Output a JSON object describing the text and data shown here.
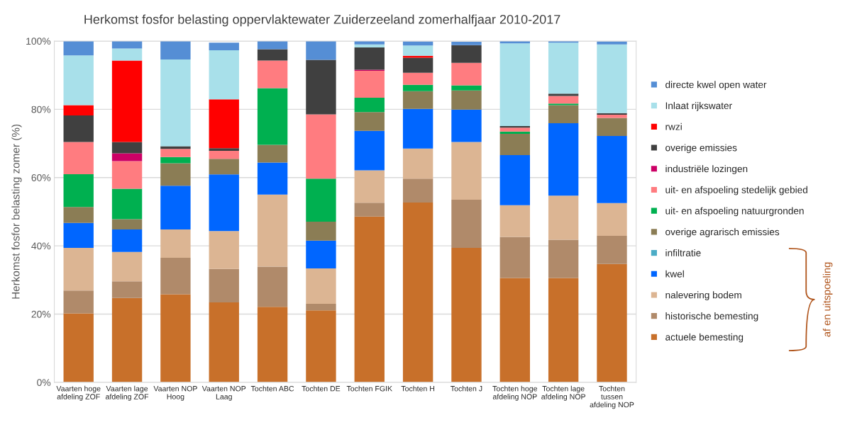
{
  "chart_data": {
    "type": "bar",
    "stacked": true,
    "title": "Herkomst fosfor belasting oppervlaktewater Zuiderzeeland zomerhalfjaar 2010-2017",
    "ylabel": "Herkomst fosfor belasting zomer (%)",
    "categories": [
      "Vaarten hoge\nafdeling ZOF",
      "Vaarten lage\nafdeling ZOF",
      "Vaarten NOP\nHoog",
      "Vaarten NOP\nLaag",
      "Tochten ABC",
      "Tochten DE",
      "Tochten FGIK",
      "Tochten H",
      "Tochten J",
      "Tochten hoge\nafdeling NOP",
      "Tochten lage\nafdeling NOP",
      "Tochten\ntussen\nafdeling NOP"
    ],
    "series": [
      {
        "name": "actuele bemesting",
        "color": "#c8702a",
        "values": [
          20.2,
          24.7,
          25.8,
          23.4,
          22.1,
          21.1,
          48.6,
          52.7,
          39.4,
          30.6,
          30.6,
          34.7
        ]
      },
      {
        "name": "historische bemesting",
        "color": "#b08a6a",
        "values": [
          6.7,
          4.9,
          10.7,
          9.8,
          11.8,
          1.9,
          4.0,
          7.0,
          14.1,
          12.0,
          11.2,
          8.2
        ]
      },
      {
        "name": "nalevering bodem",
        "color": "#dcb593",
        "values": [
          12.5,
          8.6,
          8.3,
          11.1,
          21.1,
          10.4,
          9.5,
          8.8,
          16.9,
          9.3,
          12.9,
          9.6
        ]
      },
      {
        "name": "kwel",
        "color": "#0066ff",
        "values": [
          7.3,
          6.6,
          12.8,
          16.6,
          9.4,
          8.1,
          11.6,
          11.6,
          9.5,
          14.7,
          21.2,
          19.7
        ]
      },
      {
        "name": "infiltratie",
        "color": "#4bacc6",
        "values": [
          0,
          0,
          0,
          0,
          0,
          0,
          0,
          0,
          0,
          0,
          0,
          0
        ]
      },
      {
        "name": "overige agrarisch emissies",
        "color": "#8b7d55",
        "values": [
          4.7,
          3.0,
          6.6,
          4.6,
          5.2,
          5.6,
          5.5,
          5.2,
          5.6,
          6.2,
          5.3,
          5.3
        ]
      },
      {
        "name": "uit- en afspoeling natuurgronden",
        "color": "#00b050",
        "values": [
          9.6,
          8.9,
          1.8,
          null,
          16.6,
          12.6,
          4.2,
          1.9,
          1.5,
          0.7,
          0.5,
          null
        ]
      },
      {
        "name": "uit- en afspoeling stedelijk gebied",
        "color": "#ff7c80",
        "values": [
          9.4,
          8.1,
          2.4,
          2.3,
          8.1,
          18.8,
          7.9,
          3.5,
          6.6,
          1.1,
          2.2,
          0.9
        ]
      },
      {
        "name": "industriële lozingen",
        "color": "#cc0066",
        "values": [
          0,
          2.3,
          0,
          0,
          0,
          0,
          0.3,
          null,
          null,
          0,
          0,
          0
        ]
      },
      {
        "name": "overige emissies",
        "color": "#404040",
        "values": [
          7.8,
          3.3,
          0.8,
          0.8,
          3.3,
          16.0,
          6.5,
          4.4,
          5.2,
          0.5,
          0.7,
          0.5
        ]
      },
      {
        "name": "rwzi",
        "color": "#ff0000",
        "values": [
          3.0,
          23.9,
          0,
          14.3,
          0,
          0,
          0,
          0.6,
          0,
          0,
          0,
          0
        ]
      },
      {
        "name": "Inlaat rijkswater",
        "color": "#a8e0ea",
        "values": [
          14.6,
          3.5,
          25.4,
          14.4,
          0,
          0,
          0.9,
          3.0,
          0,
          24.2,
          14.9,
          20.1
        ]
      },
      {
        "name": "directe kwel open water",
        "color": "#558ed5",
        "values": [
          4.2,
          2.2,
          5.4,
          2.2,
          2.4,
          5.5,
          1.0,
          1.2,
          1.0,
          0.7,
          0.5,
          0.9
        ]
      }
    ],
    "ylim": [
      0,
      100
    ],
    "yticks": [
      {
        "value": 0,
        "label": "0%"
      },
      {
        "value": 20,
        "label": "20%"
      },
      {
        "value": 40,
        "label": "40%"
      },
      {
        "value": 60,
        "label": "60%"
      },
      {
        "value": 80,
        "label": "80%"
      },
      {
        "value": 100,
        "label": "100%"
      }
    ],
    "grid": "y",
    "legend": "right",
    "annotations": [
      "af en uitspoeling"
    ]
  }
}
